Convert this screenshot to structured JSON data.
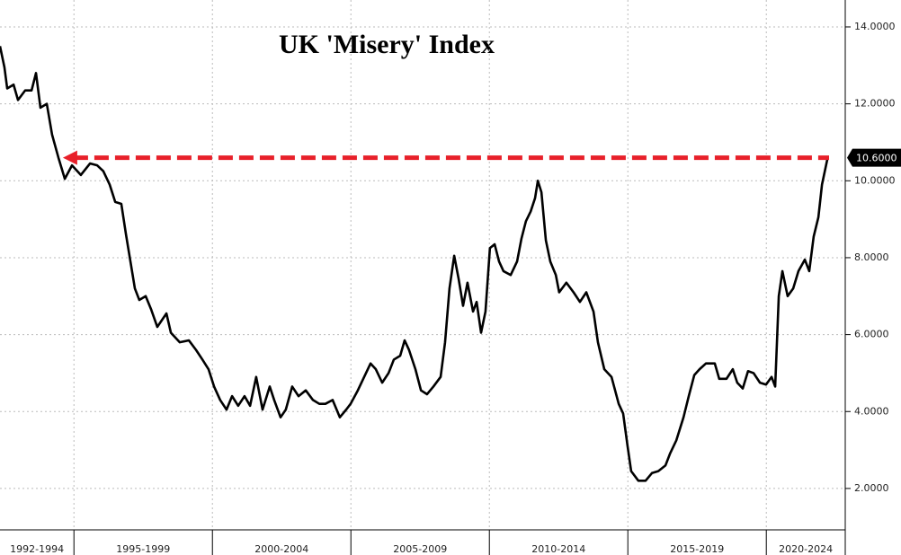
{
  "chart_data": {
    "type": "line",
    "title": "UK 'Misery' Index",
    "xlim": [
      1992.33,
      2022.85
    ],
    "ylim": [
      0.27,
      14.7
    ],
    "yticks": [
      {
        "value": 2,
        "label": "2.0000"
      },
      {
        "value": 4,
        "label": "4.0000"
      },
      {
        "value": 6,
        "label": "6.0000"
      },
      {
        "value": 8,
        "label": "8.0000"
      },
      {
        "value": 10,
        "label": "10.0000"
      },
      {
        "value": 12,
        "label": "12.0000"
      },
      {
        "value": 14,
        "label": "14.0000"
      }
    ],
    "x_bands": [
      {
        "label": "1992-1994",
        "start": 1992.33,
        "end": 1995
      },
      {
        "label": "1995-1999",
        "start": 1995,
        "end": 2000
      },
      {
        "label": "2000-2004",
        "start": 2000,
        "end": 2005
      },
      {
        "label": "2005-2009",
        "start": 2005,
        "end": 2010
      },
      {
        "label": "2010-2014",
        "start": 2010,
        "end": 2015
      },
      {
        "label": "2015-2019",
        "start": 2015,
        "end": 2020
      },
      {
        "label": "2020-2024",
        "start": 2020,
        "end": 2022.85
      }
    ],
    "grid": true,
    "series": [
      {
        "color": "#000000",
        "x": [
          1992.33,
          1992.49,
          1992.59,
          1992.82,
          1992.98,
          1993.24,
          1993.47,
          1993.63,
          1993.79,
          1994.02,
          1994.21,
          1994.44,
          1994.67,
          1994.93,
          1995.25,
          1995.58,
          1995.84,
          1996.06,
          1996.29,
          1996.49,
          1996.71,
          1996.88,
          1997.04,
          1997.2,
          1997.36,
          1997.59,
          1997.79,
          1998.01,
          1998.34,
          1998.5,
          1998.82,
          1999.15,
          1999.41,
          1999.64,
          1999.86,
          2000.06,
          2000.28,
          2000.51,
          2000.71,
          2000.93,
          2001.16,
          2001.36,
          2001.58,
          2001.81,
          2002.07,
          2002.23,
          2002.46,
          2002.65,
          2002.88,
          2003.11,
          2003.37,
          2003.63,
          2003.86,
          2004.08,
          2004.34,
          2004.6,
          2004.83,
          2004.99,
          2005.25,
          2005.48,
          2005.71,
          2005.9,
          2006.13,
          2006.36,
          2006.55,
          2006.78,
          2006.94,
          2007.1,
          2007.33,
          2007.53,
          2007.75,
          2007.98,
          2008.24,
          2008.4,
          2008.56,
          2008.73,
          2008.89,
          2009.05,
          2009.21,
          2009.41,
          2009.54,
          2009.7,
          2009.86,
          2010.02,
          2010.19,
          2010.35,
          2010.51,
          2010.77,
          2011.0,
          2011.16,
          2011.32,
          2011.49,
          2011.65,
          2011.75,
          2011.88,
          2012.04,
          2012.2,
          2012.4,
          2012.52,
          2012.78,
          2013.04,
          2013.27,
          2013.5,
          2013.76,
          2013.92,
          2014.15,
          2014.41,
          2014.67,
          2014.83,
          2014.99,
          2015.12,
          2015.38,
          2015.64,
          2015.87,
          2016.1,
          2016.36,
          2016.52,
          2016.75,
          2017.01,
          2017.2,
          2017.4,
          2017.59,
          2017.82,
          2018.14,
          2018.3,
          2018.56,
          2018.79,
          2018.95,
          2019.15,
          2019.34,
          2019.54,
          2019.77,
          2019.99,
          2020.19,
          2020.32,
          2020.45,
          2020.58,
          2020.77,
          2020.97,
          2021.16,
          2021.39,
          2021.55,
          2021.71,
          2021.88,
          2022.01,
          2022.2,
          2022.23
        ],
        "values": [
          13.5,
          12.95,
          12.4,
          12.5,
          12.1,
          12.35,
          12.35,
          12.8,
          11.9,
          12.0,
          11.2,
          10.6,
          10.05,
          10.4,
          10.15,
          10.45,
          10.4,
          10.25,
          9.9,
          9.45,
          9.4,
          8.6,
          7.9,
          7.2,
          6.9,
          7.0,
          6.65,
          6.2,
          6.55,
          6.05,
          5.8,
          5.85,
          5.6,
          5.35,
          5.1,
          4.65,
          4.3,
          4.05,
          4.4,
          4.15,
          4.4,
          4.15,
          4.9,
          4.05,
          4.65,
          4.3,
          3.85,
          4.05,
          4.65,
          4.4,
          4.55,
          4.3,
          4.2,
          4.2,
          4.3,
          3.85,
          4.05,
          4.2,
          4.55,
          4.9,
          5.25,
          5.1,
          4.75,
          5.0,
          5.35,
          5.45,
          5.85,
          5.6,
          5.1,
          4.55,
          4.45,
          4.65,
          4.9,
          5.8,
          7.2,
          8.05,
          7.45,
          6.75,
          7.35,
          6.6,
          6.85,
          6.05,
          6.6,
          8.25,
          8.35,
          7.9,
          7.65,
          7.55,
          7.9,
          8.5,
          8.95,
          9.2,
          9.55,
          10.0,
          9.7,
          8.45,
          7.9,
          7.55,
          7.1,
          7.35,
          7.1,
          6.85,
          7.1,
          6.6,
          5.8,
          5.1,
          4.9,
          4.2,
          3.95,
          3.1,
          2.45,
          2.2,
          2.2,
          2.4,
          2.45,
          2.6,
          2.9,
          3.25,
          3.85,
          4.4,
          4.95,
          5.1,
          5.25,
          5.25,
          4.85,
          4.85,
          5.1,
          4.75,
          4.6,
          5.05,
          5.0,
          4.75,
          4.7,
          4.9,
          4.65,
          7.0,
          7.65,
          7.0,
          7.2,
          7.65,
          7.95,
          7.65,
          8.55,
          9.05,
          9.9,
          10.55,
          10.6
        ]
      }
    ],
    "annotation": {
      "value": 10.6,
      "label": "10.6000",
      "from": 1994.6,
      "color": "#e8202a"
    }
  }
}
